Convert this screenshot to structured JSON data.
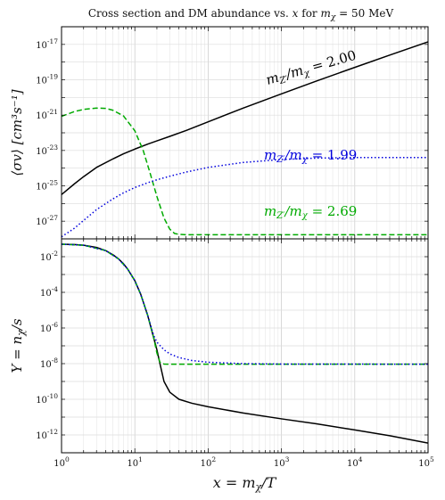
{
  "chart_data": [
    {
      "type": "line",
      "title": "Cross section and DM abundance vs. x for m_χ = 50 MeV",
      "ylabel": "⟨σv⟩ [cm³s⁻¹]",
      "xscale": "log",
      "yscale": "log",
      "xlim": [
        1,
        100000
      ],
      "ylim": [
        1e-28,
        1e-16
      ],
      "grid": true,
      "yticks": [
        {
          "value": 1e-17,
          "base": "10",
          "exp": "-17"
        },
        {
          "value": 1e-19,
          "base": "10",
          "exp": "-19"
        },
        {
          "value": 1e-21,
          "base": "10",
          "exp": "-21"
        },
        {
          "value": 1e-23,
          "base": "10",
          "exp": "-23"
        },
        {
          "value": 1e-25,
          "base": "10",
          "exp": "-25"
        },
        {
          "value": 1e-27,
          "base": "10",
          "exp": "-27"
        }
      ],
      "series": [
        {
          "name": "m_Z'/m_χ = 2.00",
          "color": "#000000",
          "style": "solid",
          "x": [
            1,
            1.5,
            2,
            3,
            5,
            7,
            10,
            15,
            20,
            30,
            50,
            100,
            300,
            1000,
            3000,
            10000,
            30000,
            100000
          ],
          "y": [
            3.2e-26,
            1.3e-25,
            3.3e-25,
            1.1e-24,
            3.3e-24,
            6.5e-24,
            1.2e-23,
            2.3e-23,
            3.5e-23,
            6.3e-23,
            1.35e-22,
            4.2e-22,
            2.5e-21,
            1.6e-20,
            8.5e-20,
            5e-19,
            2.5e-18,
            1.4e-17
          ]
        },
        {
          "name": "m_Z'/m_χ = 1.99",
          "color": "#0000dd",
          "style": "dotted",
          "x": [
            1,
            1.5,
            2,
            3,
            5,
            7,
            10,
            15,
            20,
            30,
            50,
            100,
            300,
            1000,
            3000,
            10000,
            100000
          ],
          "y": [
            1.3e-28,
            4e-28,
            1.1e-27,
            4.5e-27,
            1.8e-26,
            4e-26,
            8e-26,
            1.5e-25,
            2.2e-25,
            3.5e-25,
            6e-25,
            1.1e-24,
            2.1e-24,
            3.1e-24,
            3.7e-24,
            4e-24,
            4e-24
          ]
        },
        {
          "name": "m_Z'/m_χ = 2.69",
          "color": "#00aa00",
          "style": "dashed",
          "x": [
            1,
            1.5,
            2,
            3,
            4,
            5,
            7,
            10,
            13,
            16,
            20,
            25,
            30,
            35,
            40,
            50,
            100,
            1000,
            100000
          ],
          "y": [
            8.5e-22,
            1.6e-21,
            2.1e-21,
            2.5e-21,
            2.4e-21,
            1.9e-21,
            9e-22,
            1.3e-22,
            1e-23,
            6e-25,
            2.5e-26,
            1.5e-27,
            3.5e-28,
            2e-28,
            1.8e-28,
            1.7e-28,
            1.7e-28,
            1.7e-28,
            1.7e-28
          ]
        }
      ]
    },
    {
      "type": "line",
      "xlabel": "x = m_χ/T",
      "ylabel": "Y = n_χ/s",
      "xscale": "log",
      "yscale": "log",
      "xlim": [
        1,
        100000
      ],
      "ylim": [
        1e-13,
        0.1
      ],
      "grid": true,
      "xticks": [
        {
          "value": 1,
          "base": "10",
          "exp": "0"
        },
        {
          "value": 10,
          "base": "10",
          "exp": "1"
        },
        {
          "value": 100,
          "base": "10",
          "exp": "2"
        },
        {
          "value": 1000,
          "base": "10",
          "exp": "3"
        },
        {
          "value": 10000,
          "base": "10",
          "exp": "4"
        },
        {
          "value": 100000,
          "base": "10",
          "exp": "5"
        }
      ],
      "yticks": [
        {
          "value": 0.01,
          "base": "10",
          "exp": "-2"
        },
        {
          "value": 0.0001,
          "base": "10",
          "exp": "-4"
        },
        {
          "value": 1e-06,
          "base": "10",
          "exp": "-6"
        },
        {
          "value": 1e-08,
          "base": "10",
          "exp": "-8"
        },
        {
          "value": 1e-10,
          "base": "10",
          "exp": "-10"
        },
        {
          "value": 1e-12,
          "base": "10",
          "exp": "-12"
        }
      ],
      "series": [
        {
          "name": "m_Z'/m_χ = 2.00",
          "color": "#000000",
          "style": "solid",
          "x": [
            1,
            1.5,
            2,
            3,
            4,
            5,
            6,
            7,
            8,
            10,
            12,
            15,
            18,
            20,
            22,
            25,
            30,
            40,
            60,
            100,
            300,
            1000,
            3000,
            10000,
            30000,
            100000
          ],
          "y": [
            0.05,
            0.048,
            0.044,
            0.033,
            0.022,
            0.013,
            0.0075,
            0.004,
            0.002,
            0.00045,
            8e-05,
            5e-06,
            3e-07,
            6e-08,
            1e-08,
            1e-09,
            2.5e-10,
            1e-10,
            6e-11,
            3.8e-11,
            1.7e-11,
            8e-12,
            4.2e-12,
            1.9e-12,
            9e-13,
            3.5e-13
          ]
        },
        {
          "name": "m_Z'/m_χ = 1.99",
          "color": "#0000dd",
          "style": "dotted",
          "x": [
            1,
            2,
            4,
            6,
            8,
            10,
            12,
            15,
            18,
            20,
            25,
            30,
            40,
            60,
            100,
            300,
            1000,
            100000
          ],
          "y": [
            0.05,
            0.044,
            0.022,
            0.0075,
            0.002,
            0.00045,
            8e-05,
            5e-06,
            4e-07,
            1.6e-07,
            6e-08,
            3.5e-08,
            2.2e-08,
            1.5e-08,
            1.2e-08,
            1e-08,
            9.5e-09,
            9.3e-09
          ]
        },
        {
          "name": "m_Z'/m_χ = 2.69",
          "color": "#00aa00",
          "style": "dashed",
          "x": [
            1,
            2,
            4,
            6,
            8,
            10,
            12,
            15,
            18,
            20,
            22,
            25,
            30,
            100,
            1000,
            100000
          ],
          "y": [
            0.05,
            0.044,
            0.022,
            0.0075,
            0.002,
            0.00045,
            8e-05,
            5e-06,
            3e-07,
            4e-08,
            1.2e-08,
            9.5e-09,
            9.3e-09,
            9.3e-09,
            9.3e-09,
            9.3e-09
          ]
        }
      ]
    }
  ],
  "annotations": [
    {
      "text": "m_Z'/m_χ = 2.00",
      "color": "#000000"
    },
    {
      "text": "m_Z'/m_χ = 1.99",
      "color": "#0000dd"
    },
    {
      "text": "m_Z'/m_χ = 2.69",
      "color": "#00aa00"
    }
  ]
}
